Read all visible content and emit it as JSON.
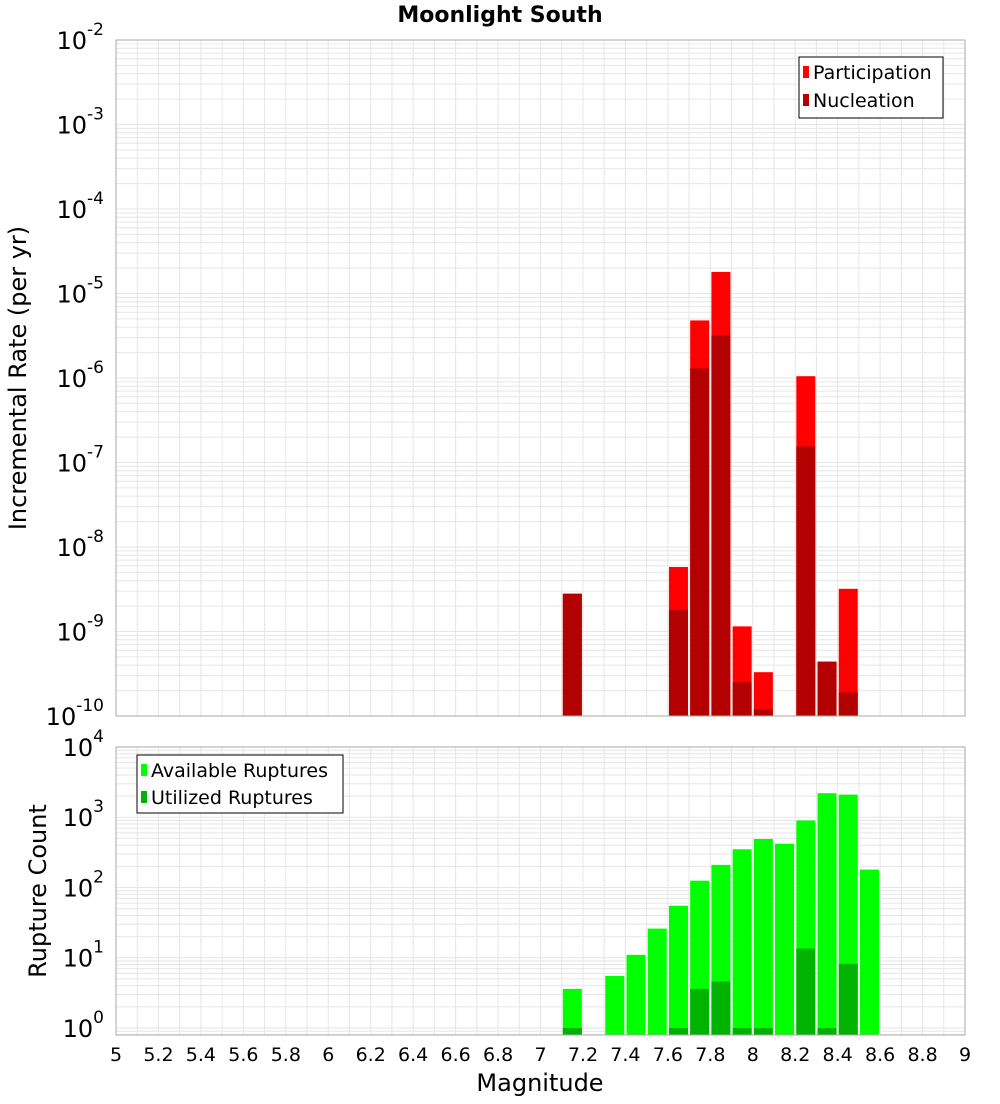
{
  "title": "Moonlight South",
  "colors": {
    "participation": "#ff0000",
    "nucleation": "#b30000",
    "available": "#00ff00",
    "utilized": "#00b300",
    "grid": "#e6e6e6",
    "frame": "#aaaaaa"
  },
  "chart_data": [
    {
      "type": "bar",
      "name": "rate-panel",
      "title": "Moonlight South",
      "ylabel": "Incremental Rate (per yr)",
      "xlabel": "",
      "yscale": "log",
      "ylim_exp": [
        -10,
        -2
      ],
      "y_tick_exponents": [
        -10,
        -9,
        -8,
        -7,
        -6,
        -5,
        -4,
        -3,
        -2
      ],
      "xlim": [
        5,
        9
      ],
      "legend_position": "top-right",
      "grid": true,
      "series": [
        {
          "name": "Participation",
          "color": "#ff0000",
          "points": [
            {
              "x": 7.15,
              "y": 2.8e-09
            },
            {
              "x": 7.65,
              "y": 5.8e-09
            },
            {
              "x": 7.75,
              "y": 4.8e-06
            },
            {
              "x": 7.85,
              "y": 1.8e-05
            },
            {
              "x": 7.95,
              "y": 1.15e-09
            },
            {
              "x": 8.05,
              "y": 3.3e-10
            },
            {
              "x": 8.25,
              "y": 1.05e-06
            },
            {
              "x": 8.35,
              "y": 4.4e-10
            },
            {
              "x": 8.45,
              "y": 3.2e-09
            }
          ]
        },
        {
          "name": "Nucleation",
          "color": "#b30000",
          "points": [
            {
              "x": 7.15,
              "y": 2.8e-09
            },
            {
              "x": 7.65,
              "y": 1.8e-09
            },
            {
              "x": 7.75,
              "y": 1.3e-06
            },
            {
              "x": 7.85,
              "y": 3.2e-06
            },
            {
              "x": 7.95,
              "y": 2.5e-10
            },
            {
              "x": 8.05,
              "y": 1.2e-10
            },
            {
              "x": 8.25,
              "y": 1.55e-07
            },
            {
              "x": 8.35,
              "y": 4.4e-10
            },
            {
              "x": 8.45,
              "y": 1.9e-10
            }
          ]
        }
      ]
    },
    {
      "type": "bar",
      "name": "count-panel",
      "ylabel": "Rupture Count",
      "xlabel": "Magnitude",
      "yscale": "log",
      "ylim_exp": [
        -0.1,
        4
      ],
      "y_tick_exponents": [
        0,
        1,
        2,
        3,
        4
      ],
      "xlim": [
        5,
        9
      ],
      "x_ticks": [
        "5",
        "5.2",
        "5.4",
        "5.6",
        "5.8",
        "6",
        "6.2",
        "6.4",
        "6.6",
        "6.8",
        "7",
        "7.2",
        "7.4",
        "7.6",
        "7.8",
        "8",
        "8.2",
        "8.4",
        "8.6",
        "8.8",
        "9"
      ],
      "legend_position": "top-left",
      "grid": true,
      "series": [
        {
          "name": "Available Ruptures",
          "color": "#00ff00",
          "points": [
            {
              "x": 7.15,
              "y": 3.6
            },
            {
              "x": 7.35,
              "y": 5.5
            },
            {
              "x": 7.45,
              "y": 11
            },
            {
              "x": 7.55,
              "y": 26
            },
            {
              "x": 7.65,
              "y": 55
            },
            {
              "x": 7.75,
              "y": 125
            },
            {
              "x": 7.85,
              "y": 210
            },
            {
              "x": 7.95,
              "y": 350
            },
            {
              "x": 8.05,
              "y": 490
            },
            {
              "x": 8.15,
              "y": 420
            },
            {
              "x": 8.25,
              "y": 900
            },
            {
              "x": 8.35,
              "y": 2200
            },
            {
              "x": 8.45,
              "y": 2100
            },
            {
              "x": 8.55,
              "y": 180
            }
          ]
        },
        {
          "name": "Utilized Ruptures",
          "color": "#00b300",
          "points": [
            {
              "x": 7.15,
              "y": 1
            },
            {
              "x": 7.65,
              "y": 1
            },
            {
              "x": 7.75,
              "y": 3.6
            },
            {
              "x": 7.85,
              "y": 4.6
            },
            {
              "x": 7.95,
              "y": 1
            },
            {
              "x": 8.05,
              "y": 1
            },
            {
              "x": 8.25,
              "y": 13.5
            },
            {
              "x": 8.35,
              "y": 1
            },
            {
              "x": 8.45,
              "y": 8.2
            }
          ]
        }
      ]
    }
  ]
}
